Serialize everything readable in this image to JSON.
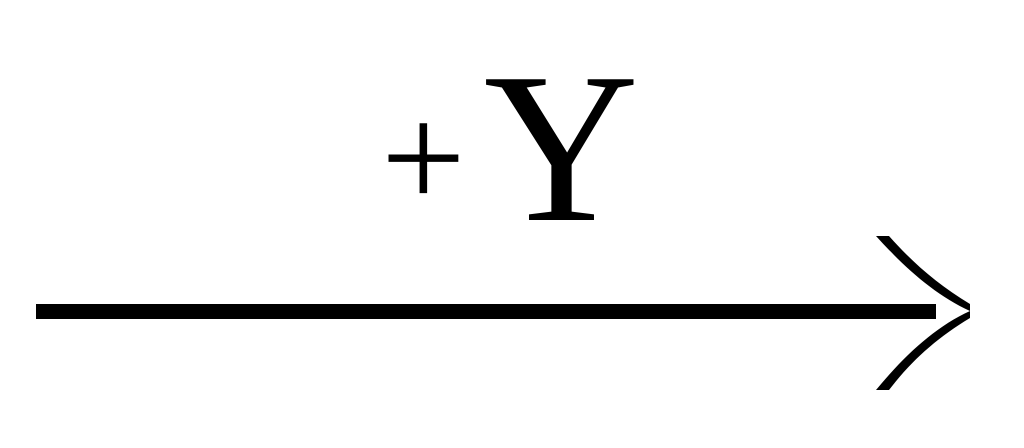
{
  "label": {
    "sign": "+",
    "variable": "Y"
  },
  "arrow": {
    "direction": "right",
    "color": "#000000"
  }
}
